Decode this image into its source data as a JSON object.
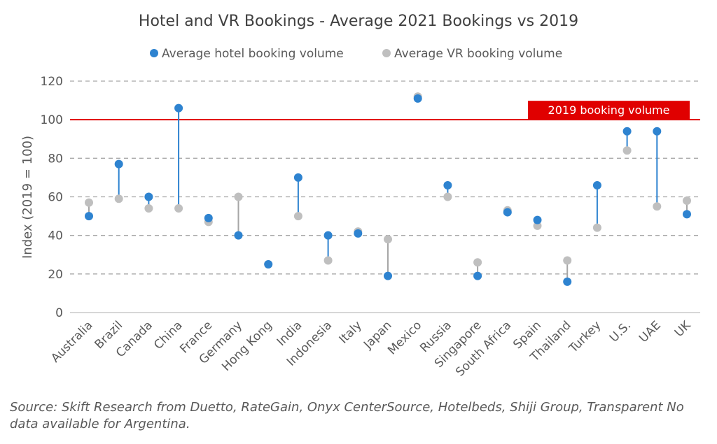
{
  "chart_data": {
    "type": "dot-range",
    "title": "Hotel and VR Bookings - Average 2021 Bookings vs 2019",
    "ylabel": "Index (2019 = 100)",
    "ylim": [
      0,
      120
    ],
    "yticks": [
      0,
      20,
      40,
      60,
      80,
      100,
      120
    ],
    "grid": true,
    "legend_position": "top",
    "reference_line": {
      "value": 100,
      "label": "2019 booking volume",
      "color": "#e00000"
    },
    "categories": [
      "Australia",
      "Brazil",
      "Canada",
      "China",
      "France",
      "Germany",
      "Hong Kong",
      "India",
      "Indonesia",
      "Italy",
      "Japan",
      "Mexico",
      "Russia",
      "Singapore",
      "South Africa",
      "Spain",
      "Thailand",
      "Turkey",
      "U.S.",
      "UAE",
      "UK"
    ],
    "series": [
      {
        "name": "Average hotel booking volume",
        "color": "#2e83d0",
        "values": [
          50,
          77,
          60,
          106,
          49,
          40,
          25,
          70,
          40,
          41,
          19,
          111,
          66,
          19,
          52,
          48,
          16,
          66,
          94,
          94,
          51
        ]
      },
      {
        "name": "Average VR booking volume",
        "color": "#bfbfbf",
        "values": [
          57,
          59,
          54,
          54,
          47,
          60,
          25,
          50,
          27,
          42,
          38,
          112,
          60,
          26,
          53,
          45,
          27,
          44,
          84,
          55,
          58
        ]
      }
    ]
  },
  "source_note": "Source: Skift Research from Duetto, RateGain, Onyx CenterSource, Hotelbeds, Shiji Group, Transparent No data available for Argentina."
}
